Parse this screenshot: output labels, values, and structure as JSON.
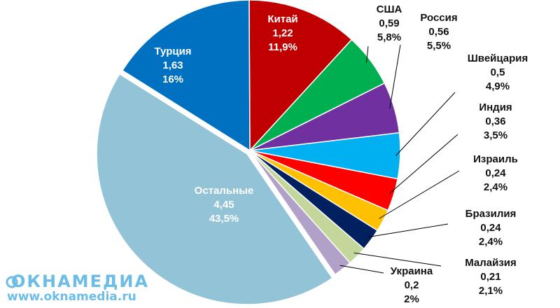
{
  "chart_data": {
    "type": "pie",
    "title": "",
    "unit_note": "",
    "start_clockwise_from": "top",
    "slices": [
      {
        "name": "Китай",
        "value": "1,22",
        "percent": "11,9%",
        "num": 11.9,
        "color": "#c00000",
        "label": "inside"
      },
      {
        "name": "США",
        "value": "0,59",
        "percent": "5,8%",
        "num": 5.8,
        "color": "#00b050",
        "label": "outside"
      },
      {
        "name": "Россия",
        "value": "0,56",
        "percent": "5,5%",
        "num": 5.5,
        "color": "#7030a0",
        "label": "outside"
      },
      {
        "name": "Швейцария",
        "value": "0,5",
        "percent": "4,9%",
        "num": 4.9,
        "color": "#00b0f0",
        "label": "outside"
      },
      {
        "name": "Индия",
        "value": "0,36",
        "percent": "3,5%",
        "num": 3.5,
        "color": "#ff0000",
        "label": "outside"
      },
      {
        "name": "Израиль",
        "value": "0,24",
        "percent": "2,4%",
        "num": 2.4,
        "color": "#ffc000",
        "label": "outside"
      },
      {
        "name": "Бразилия",
        "value": "0,24",
        "percent": "2,4%",
        "num": 2.4,
        "color": "#002060",
        "label": "outside"
      },
      {
        "name": "Малайзия",
        "value": "0,21",
        "percent": "2,1%",
        "num": 2.1,
        "color": "#c4d79b",
        "label": "outside"
      },
      {
        "name": "Украина",
        "value": "0,2",
        "percent": "2%",
        "num": 2.0,
        "color": "#b1a0c7",
        "label": "outside"
      },
      {
        "name": "Остальные",
        "value": "4,45",
        "percent": "43,5%",
        "num": 43.5,
        "color": "#93c3d6",
        "label": "inside"
      },
      {
        "name": "Турция",
        "value": "1,63",
        "percent": "16%",
        "num": 16.0,
        "color": "#0070c0",
        "label": "inside"
      }
    ]
  },
  "watermark": {
    "brand": "ОКНАМЕДИА",
    "url": "www.oknamedia.ru"
  }
}
